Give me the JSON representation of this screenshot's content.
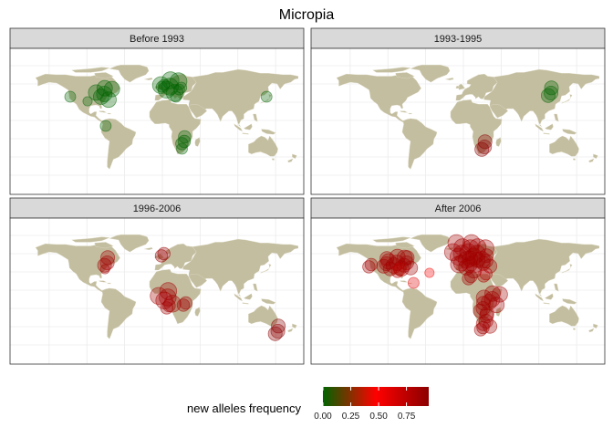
{
  "chart_data": {
    "type": "scatter",
    "title": "Micropia",
    "projection": "equirectangular world map",
    "xlim": [
      -180,
      180
    ],
    "ylim": [
      -60,
      85
    ],
    "grid": true,
    "colors": {
      "land": "#c3bea0",
      "panel_border": "#333333",
      "strip_bg": "#d9d9d9",
      "grid": "#ebebeb"
    },
    "legend": {
      "title": "new alleles frequency",
      "placement": "bottom",
      "ticks": [
        "0.00",
        "0.25",
        "0.50",
        "0.75"
      ],
      "tick_values": [
        0,
        0.25,
        0.5,
        0.75
      ],
      "range": [
        0,
        0.95
      ],
      "gradient": [
        "#006400",
        "#ff0000",
        "#8b0000"
      ]
    },
    "facets": [
      {
        "label": "Before 1993",
        "points": [
          {
            "lon": -77,
            "lat": 39,
            "freq": 0.0,
            "size": 10,
            "count": 6
          },
          {
            "lon": -99,
            "lat": 31,
            "freq": 0.0,
            "size": 6,
            "count": 1
          },
          {
            "lon": -122,
            "lat": 36,
            "freq": 0.0,
            "size": 7,
            "count": 1
          },
          {
            "lon": -75,
            "lat": 4,
            "freq": 0.0,
            "size": 7,
            "count": 1
          },
          {
            "lon": 10,
            "lat": 47,
            "freq": 0.0,
            "size": 11,
            "count": 6
          },
          {
            "lon": 2,
            "lat": 49,
            "freq": 0.0,
            "size": 7,
            "count": 2
          },
          {
            "lon": 25,
            "lat": 46,
            "freq": 0.0,
            "size": 7,
            "count": 2
          },
          {
            "lon": 18,
            "lat": 36,
            "freq": 0.0,
            "size": 7,
            "count": 1
          },
          {
            "lon": 138,
            "lat": 36,
            "freq": 0.0,
            "size": 7,
            "count": 1
          },
          {
            "lon": 29,
            "lat": -13,
            "freq": 0.0,
            "size": 8,
            "count": 3
          },
          {
            "lon": 26,
            "lat": -21,
            "freq": 0.0,
            "size": 7,
            "count": 1
          }
        ]
      },
      {
        "label": "1993-1995",
        "points": [
          {
            "lon": 116,
            "lat": 40,
            "freq": 0.0,
            "size": 9,
            "count": 3
          },
          {
            "lon": 28,
            "lat": -19,
            "freq": 0.95,
            "size": 9,
            "count": 3
          }
        ]
      },
      {
        "label": "1996-2006",
        "points": [
          {
            "lon": -73,
            "lat": 40,
            "freq": 0.85,
            "size": 9,
            "count": 3
          },
          {
            "lon": -76,
            "lat": 33,
            "freq": 0.85,
            "size": 6,
            "count": 1
          },
          {
            "lon": 2,
            "lat": 50,
            "freq": 0.9,
            "size": 8,
            "count": 2
          },
          {
            "lon": 7,
            "lat": 2,
            "freq": 0.85,
            "size": 11,
            "count": 5
          },
          {
            "lon": 9,
            "lat": -7,
            "freq": 0.85,
            "size": 8,
            "count": 2
          },
          {
            "lon": 31,
            "lat": -4,
            "freq": 0.85,
            "size": 8,
            "count": 2
          },
          {
            "lon": 153,
            "lat": -35,
            "freq": 0.95,
            "size": 9,
            "count": 3
          }
        ]
      },
      {
        "label": "After 2006",
        "points": [
          {
            "lon": -122,
            "lat": 38,
            "freq": 0.85,
            "size": 8,
            "count": 2
          },
          {
            "lon": -102,
            "lat": 39,
            "freq": 0.85,
            "size": 9,
            "count": 4
          },
          {
            "lon": -88,
            "lat": 40,
            "freq": 0.85,
            "size": 10,
            "count": 6
          },
          {
            "lon": -75,
            "lat": 40,
            "freq": 0.85,
            "size": 9,
            "count": 4
          },
          {
            "lon": -84,
            "lat": 33,
            "freq": 0.75,
            "size": 8,
            "count": 2
          },
          {
            "lon": -66,
            "lat": 18,
            "freq": 0.6,
            "size": 7,
            "count": 1
          },
          {
            "lon": -45,
            "lat": 29,
            "freq": 0.5,
            "size": 6,
            "count": 1
          },
          {
            "lon": -2,
            "lat": 50,
            "freq": 0.85,
            "size": 11,
            "count": 8
          },
          {
            "lon": 18,
            "lat": 50,
            "freq": 0.85,
            "size": 11,
            "count": 8
          },
          {
            "lon": 8,
            "lat": 38,
            "freq": 0.85,
            "size": 10,
            "count": 6
          },
          {
            "lon": 30,
            "lat": 42,
            "freq": 0.85,
            "size": 9,
            "count": 4
          },
          {
            "lon": 10,
            "lat": 25,
            "freq": 0.85,
            "size": 8,
            "count": 2
          },
          {
            "lon": 30,
            "lat": 28,
            "freq": 0.8,
            "size": 8,
            "count": 2
          },
          {
            "lon": 38,
            "lat": 0,
            "freq": 0.85,
            "size": 10,
            "count": 6
          },
          {
            "lon": 26,
            "lat": -10,
            "freq": 0.85,
            "size": 9,
            "count": 4
          },
          {
            "lon": 30,
            "lat": -24,
            "freq": 0.85,
            "size": 9,
            "count": 4
          },
          {
            "lon": 26,
            "lat": -31,
            "freq": 0.85,
            "size": 8,
            "count": 2
          }
        ]
      }
    ]
  }
}
